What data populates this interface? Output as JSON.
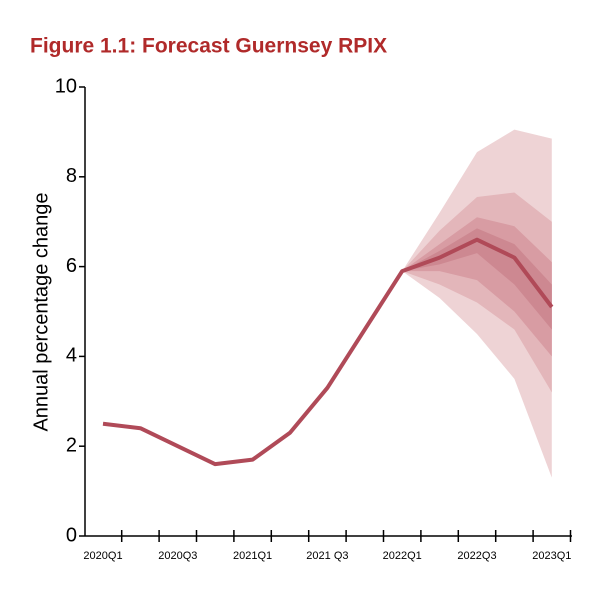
{
  "chart_data": {
    "type": "fan",
    "title": "Figure 1.1: Forecast Guernsey RPIX",
    "y_label": "Annual percentage change",
    "categories": [
      "2020Q1",
      null,
      "2020Q3",
      null,
      "2021Q1",
      null,
      "2021 Q3",
      null,
      "2022Q1",
      null,
      "2022Q3",
      null,
      "2023Q1"
    ],
    "series": [
      {
        "color": "#b04a58",
        "values": [
          2.5,
          2.4,
          2.0,
          1.6,
          1.7,
          2.3,
          3.3,
          4.6,
          5.9,
          6.2,
          6.6,
          6.2,
          5.1
        ]
      }
    ],
    "bands": [
      {
        "color": "#eed3d5",
        "upper": [
          null,
          null,
          null,
          null,
          null,
          null,
          null,
          null,
          5.9,
          7.2,
          8.55,
          9.05,
          8.85
        ],
        "lower": [
          null,
          null,
          null,
          null,
          null,
          null,
          null,
          null,
          5.9,
          5.3,
          4.5,
          3.5,
          1.3
        ]
      },
      {
        "color": "#e3b6ba",
        "upper": [
          null,
          null,
          null,
          null,
          null,
          null,
          null,
          null,
          5.9,
          6.8,
          7.55,
          7.65,
          7.0
        ],
        "lower": [
          null,
          null,
          null,
          null,
          null,
          null,
          null,
          null,
          5.9,
          5.6,
          5.2,
          4.6,
          3.2
        ]
      },
      {
        "color": "#d89ca3",
        "upper": [
          null,
          null,
          null,
          null,
          null,
          null,
          null,
          null,
          5.9,
          6.5,
          7.1,
          6.9,
          6.1
        ],
        "lower": [
          null,
          null,
          null,
          null,
          null,
          null,
          null,
          null,
          5.9,
          5.9,
          5.7,
          5.0,
          4.0
        ]
      },
      {
        "color": "#cd8891",
        "upper": [
          null,
          null,
          null,
          null,
          null,
          null,
          null,
          null,
          5.9,
          6.35,
          6.85,
          6.5,
          5.6
        ],
        "lower": [
          null,
          null,
          null,
          null,
          null,
          null,
          null,
          null,
          5.9,
          6.05,
          6.3,
          5.6,
          4.6
        ]
      }
    ],
    "ylim": [
      0,
      10
    ],
    "yticks": [
      0,
      2,
      4,
      6,
      8,
      10
    ]
  }
}
